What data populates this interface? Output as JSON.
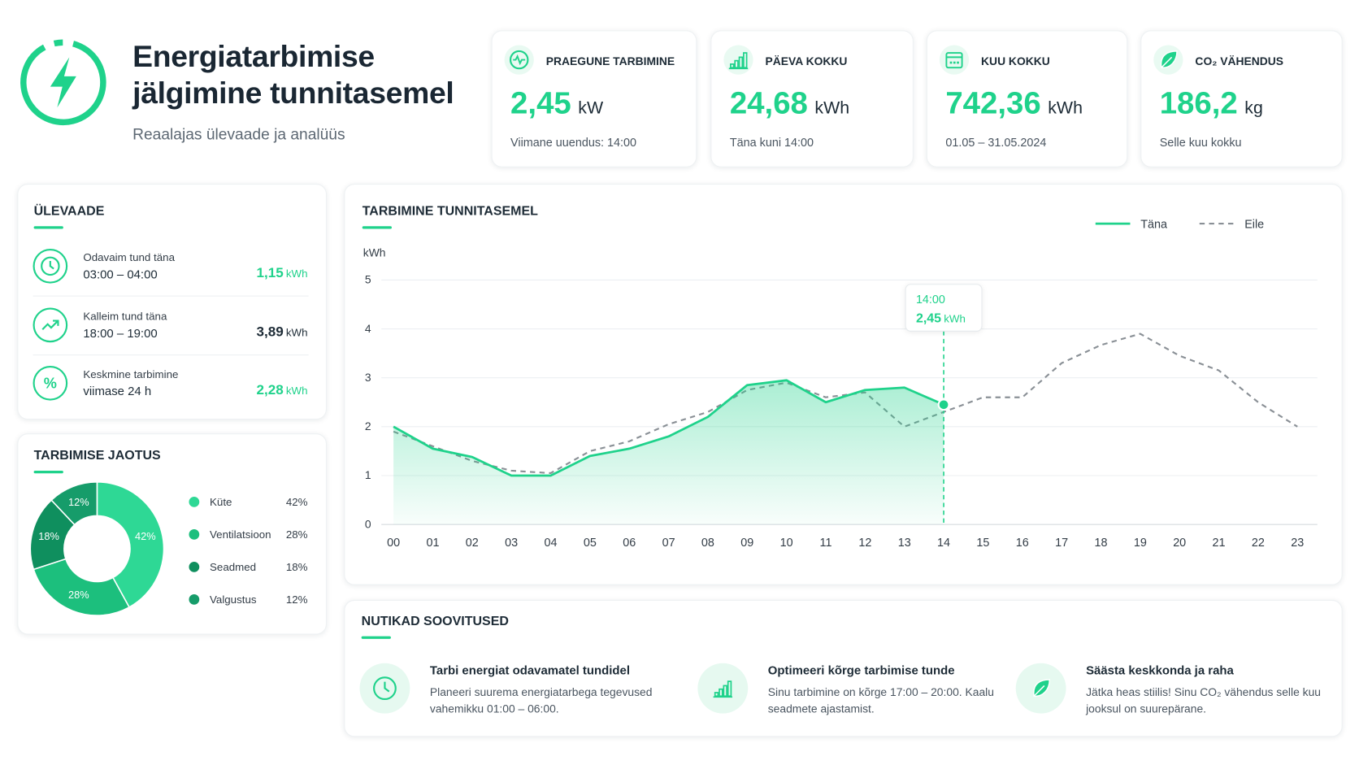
{
  "header": {
    "title_line1": "Energiatarbimise",
    "title_line2": "jälgimine tunnitasemel",
    "subtitle": "Reaalajas ülevaade ja analüüs"
  },
  "kpis": [
    {
      "label": "PRAEGUNE TARBIMINE",
      "value": "2,45",
      "unit": "kW",
      "note": "Viimane uuendus: 14:00"
    },
    {
      "label": "PÄEVA KOKKU",
      "value": "24,68",
      "unit": "kWh",
      "note": "Täna kuni 14:00"
    },
    {
      "label": "KUU KOKKU",
      "value": "742,36",
      "unit": "kWh",
      "note": "01.05 – 31.05.2024"
    },
    {
      "label": "CO₂ VÄHENDUS",
      "value": "186,2",
      "unit": "kg",
      "note": "Selle kuu kokku"
    }
  ],
  "overview": {
    "title": "ÜLEVAADE",
    "items": [
      {
        "label": "Odavaim tund täna",
        "detail": "03:00 – 04:00",
        "value": "1,15",
        "unit": "kWh"
      },
      {
        "label": "Kalleim tund täna",
        "detail": "18:00 – 19:00",
        "value": "3,89",
        "unit": "kWh"
      },
      {
        "label": "Keskmine tarbimine",
        "detail": "viimase 24 h",
        "value": "2,28",
        "unit": "kWh"
      }
    ]
  },
  "chart_data": [
    {
      "type": "line",
      "title": "TARBIMINE TUNNITASEMEL",
      "y_label": "kWh",
      "categories": [
        "00",
        "01",
        "02",
        "03",
        "04",
        "05",
        "06",
        "07",
        "08",
        "09",
        "10",
        "11",
        "12",
        "13",
        "14",
        "15",
        "16",
        "17",
        "18",
        "19",
        "20",
        "21",
        "22",
        "23"
      ],
      "series": [
        {
          "name": "Täna",
          "color": "#1fd28b",
          "values": [
            2.0,
            1.55,
            1.38,
            1.0,
            1.0,
            1.4,
            1.55,
            1.8,
            2.2,
            2.85,
            2.95,
            2.5,
            2.75,
            2.8,
            2.45,
            null,
            null,
            null,
            null,
            null,
            null,
            null,
            null,
            null
          ]
        },
        {
          "name": "Eile",
          "color": "#8a9096",
          "dashed": true,
          "values": [
            1.9,
            1.6,
            1.3,
            1.1,
            1.05,
            1.5,
            1.7,
            2.05,
            2.3,
            2.75,
            2.9,
            2.6,
            2.7,
            2.0,
            2.3,
            2.6,
            2.6,
            3.3,
            3.67,
            3.9,
            3.45,
            3.15,
            2.5,
            2.0
          ]
        }
      ],
      "ylim": [
        0,
        5
      ],
      "yticks": [
        0,
        1,
        2,
        3,
        4,
        5
      ],
      "grid": true,
      "legend": "top-right",
      "annotation": {
        "time": "14:00",
        "value": "2,45",
        "unit": "kWh"
      }
    },
    {
      "type": "pie",
      "title": "TARBIMISE JAOTUS",
      "donut": true,
      "categories": [
        "Küte",
        "Ventilatsioon",
        "Seadmed",
        "Valgustus"
      ],
      "values": [
        42,
        28,
        18,
        12
      ],
      "value_labels": [
        "42%",
        "28%",
        "18%",
        "12%"
      ],
      "colors": [
        "#2ed895",
        "#1cbf7d",
        "#0f8f5e",
        "#169c6a"
      ]
    }
  ],
  "recommendations": {
    "title": "NUTIKAD SOOVITUSED",
    "items": [
      {
        "title": "Tarbi energiat odavamatel tundidel",
        "text": "Planeeri suurema energiatarbega tegevused vahemikku 01:00 – 06:00."
      },
      {
        "title": "Optimeeri kõrge tarbimise tunde",
        "text": "Sinu tarbimine on kõrge 17:00 – 20:00. Kaalu seadmete ajastamist."
      },
      {
        "title": "Säästa keskkonda ja raha",
        "text": "Jätka heas stiilis! Sinu CO₂ vähendus selle kuu jooksul on suurepärane."
      }
    ]
  }
}
